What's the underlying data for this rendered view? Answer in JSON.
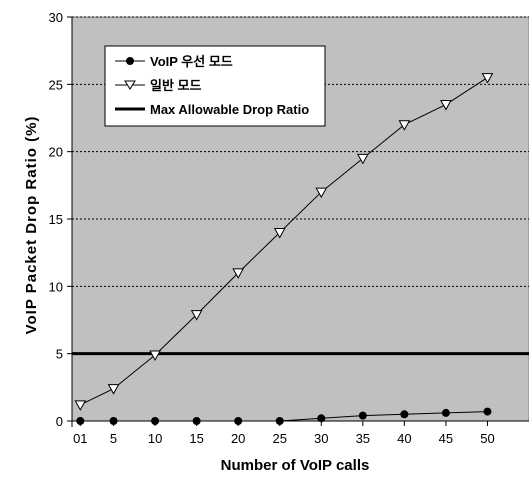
{
  "chart_data": {
    "type": "line",
    "xlabel": "Number of VoIP calls",
    "ylabel": "VoIP Packet Drop Ratio (%)",
    "ylim": [
      0,
      30
    ],
    "yticks": [
      0,
      5,
      10,
      15,
      20,
      25,
      30
    ],
    "xlim": [
      0,
      55
    ],
    "xticks": [
      {
        "value": 1,
        "label": "01"
      },
      {
        "value": 5,
        "label": "5"
      },
      {
        "value": 10,
        "label": "10"
      },
      {
        "value": 15,
        "label": "15"
      },
      {
        "value": 20,
        "label": "20"
      },
      {
        "value": 25,
        "label": "25"
      },
      {
        "value": 30,
        "label": "30"
      },
      {
        "value": 35,
        "label": "35"
      },
      {
        "value": 40,
        "label": "40"
      },
      {
        "value": 45,
        "label": "45"
      },
      {
        "value": 50,
        "label": "50"
      }
    ],
    "grid": "horizontal dotted",
    "legend_position": "top-left",
    "plot_background": "#c0c0c0",
    "series": [
      {
        "name": "VoIP 우선 모드",
        "marker": "filled-circle",
        "color": "#000000",
        "x": [
          1,
          5,
          10,
          15,
          20,
          25,
          30,
          35,
          40,
          45,
          50
        ],
        "values": [
          0,
          0,
          0,
          0,
          0,
          0,
          0.2,
          0.4,
          0.5,
          0.6,
          0.7
        ]
      },
      {
        "name": "일반 모드",
        "marker": "open-triangle-down",
        "color": "#000000",
        "x": [
          1,
          5,
          10,
          15,
          20,
          25,
          30,
          35,
          40,
          45,
          50
        ],
        "values": [
          1.2,
          2.4,
          4.9,
          7.9,
          11.0,
          14.0,
          17.0,
          19.5,
          22.0,
          23.5,
          25.5
        ]
      }
    ],
    "reference_line": {
      "name": "Max Allowable Drop Ratio",
      "value": 5,
      "color": "#000000"
    }
  }
}
